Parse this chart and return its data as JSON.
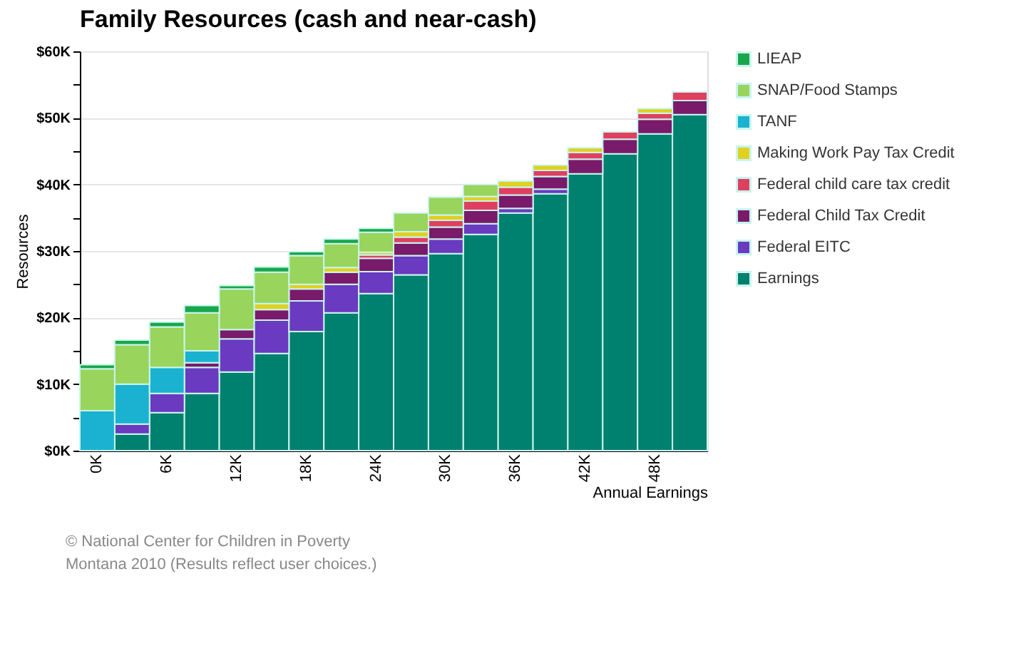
{
  "chart_data": {
    "type": "bar",
    "stacked": true,
    "title": "Family Resources (cash and near-cash)",
    "xlabel": "Annual Earnings",
    "ylabel": "Resources",
    "categories": [
      "0K",
      null,
      "6K",
      null,
      "12K",
      null,
      "18K",
      null,
      "24K",
      null,
      "30K",
      null,
      "36K",
      null,
      "42K",
      null,
      "48K",
      null
    ],
    "series": [
      {
        "name": "Earnings",
        "color": "#00806e",
        "values": [
          null,
          2.5,
          5.7,
          8.6,
          11.8,
          14.6,
          17.9,
          20.7,
          23.6,
          26.4,
          29.6,
          32.5,
          35.7,
          38.6,
          41.6,
          44.6,
          47.6,
          50.5
        ]
      },
      {
        "name": "Federal EITC",
        "color": "#6a3ac0",
        "values": [
          null,
          1.5,
          2.9,
          3.9,
          5.0,
          5.0,
          4.6,
          4.3,
          3.3,
          2.9,
          2.2,
          1.6,
          0.7,
          0.7,
          null,
          null,
          null,
          null
        ]
      },
      {
        "name": "Federal Child Tax Credit",
        "color": "#7a1a6a",
        "values": [
          null,
          null,
          null,
          0.7,
          1.4,
          1.6,
          1.8,
          1.8,
          2.0,
          1.9,
          1.8,
          2.0,
          2.0,
          1.9,
          2.2,
          2.2,
          2.2,
          2.1
        ]
      },
      {
        "name": "Federal child care tax credit",
        "color": "#e04060",
        "values": [
          null,
          null,
          null,
          null,
          null,
          null,
          null,
          null,
          0.5,
          0.9,
          1.0,
          1.4,
          1.2,
          0.9,
          1.0,
          1.1,
          0.9,
          1.3
        ]
      },
      {
        "name": "Making Work Pay Tax Credit",
        "color": "#e0d020",
        "values": [
          null,
          null,
          null,
          null,
          null,
          0.9,
          0.7,
          0.7,
          0.4,
          0.8,
          0.8,
          0.7,
          0.9,
          0.8,
          0.7,
          null,
          0.7,
          null
        ]
      },
      {
        "name": "TANF",
        "color": "#1ab2d0",
        "values": [
          6.0,
          6.0,
          3.9,
          1.8,
          null,
          null,
          null,
          null,
          null,
          null,
          null,
          null,
          null,
          null,
          null,
          null,
          null,
          null
        ]
      },
      {
        "name": "SNAP/Food Stamps",
        "color": "#99d45c",
        "values": [
          6.3,
          5.9,
          6.1,
          5.7,
          6.1,
          4.7,
          4.3,
          3.6,
          3.0,
          2.8,
          2.7,
          1.8,
          null,
          null,
          null,
          null,
          null,
          null
        ]
      },
      {
        "name": "LIEAP",
        "color": "#1aa64a",
        "values": [
          0.6,
          0.7,
          0.7,
          1.1,
          0.5,
          0.8,
          0.6,
          0.7,
          0.6,
          null,
          null,
          null,
          null,
          null,
          null,
          null,
          null,
          null
        ]
      }
    ],
    "ylim": [
      0,
      60
    ],
    "yticks": [
      {
        "value": 0,
        "label": "$0K"
      },
      {
        "value": 5,
        "label": null
      },
      {
        "value": 10,
        "label": "$10K"
      },
      {
        "value": 15,
        "label": null
      },
      {
        "value": 20,
        "label": "$20K"
      },
      {
        "value": 25,
        "label": null
      },
      {
        "value": 30,
        "label": "$30K"
      },
      {
        "value": 35,
        "label": null
      },
      {
        "value": 40,
        "label": "$40K"
      },
      {
        "value": 45,
        "label": null
      },
      {
        "value": 50,
        "label": "$50K"
      },
      {
        "value": 55,
        "label": null
      },
      {
        "value": 60,
        "label": "$60K"
      }
    ],
    "grid": "y",
    "legend": "top right",
    "annotations": [
      "© National Center for Children in Poverty",
      "Montana 2010 (Results reflect user choices.)"
    ]
  }
}
